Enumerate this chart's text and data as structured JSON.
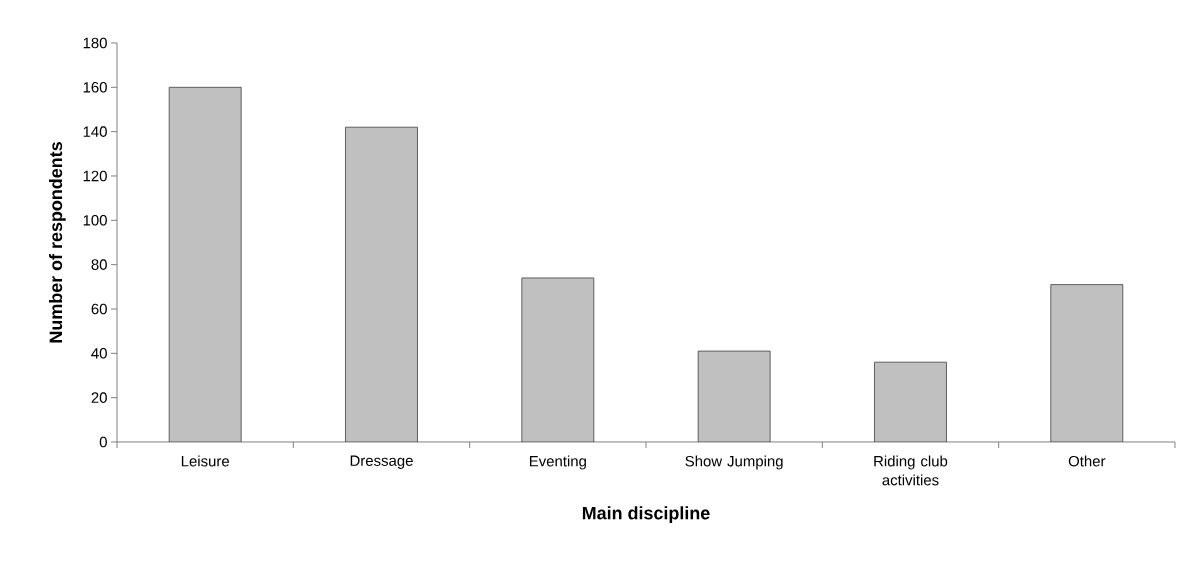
{
  "chart_data": {
    "type": "bar",
    "xlabel": "Main discipline",
    "ylabel": "Number of respondents",
    "categories": [
      "Leisure",
      "Dressage",
      "Eventing",
      "Show Jumping",
      "Riding club activities",
      "Other"
    ],
    "values": [
      160,
      142,
      74,
      41,
      36,
      71
    ],
    "color": "#c0c0c0",
    "ylim": [
      0,
      180
    ],
    "yticks": [
      0,
      20,
      40,
      60,
      80,
      100,
      120,
      140,
      160,
      180
    ],
    "grid": false
  }
}
